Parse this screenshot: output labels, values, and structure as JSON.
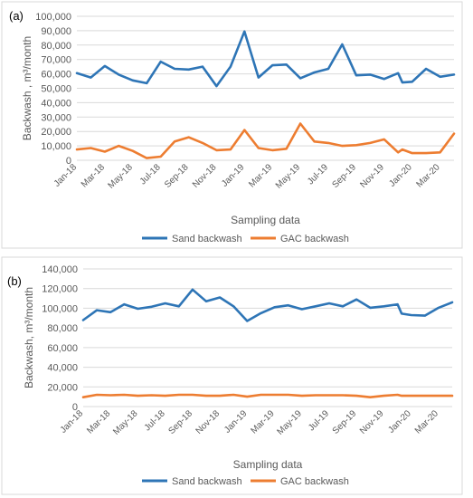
{
  "chart_data": [
    {
      "panel_label": "(a)",
      "type": "line",
      "xlabel": "Sampling data",
      "ylabel": "Backwash , m³/month",
      "ylim": [
        0,
        100000
      ],
      "y_ticks": [
        "0",
        "10,000",
        "20,000",
        "30,000",
        "40,000",
        "50,000",
        "60,000",
        "70,000",
        "80,000",
        "90,000",
        "100,000"
      ],
      "x_tick_labels": [
        "Jan-18",
        "Mar-18",
        "May-18",
        "Jul-18",
        "Sep-18",
        "Nov-18",
        "Jan-19",
        "Mar-19",
        "May-19",
        "Jul-19",
        "Sep-19",
        "Nov-19",
        "Jan-20",
        "Mar-20"
      ],
      "x_range": [
        0,
        27
      ],
      "grid": "horizontal",
      "legend": "bottom",
      "series": [
        {
          "name": "Sand backwash",
          "color": "#2e75b6",
          "x": [
            0,
            1,
            2,
            3,
            4,
            5,
            6,
            7,
            8,
            9,
            10,
            11,
            12,
            13,
            14,
            15,
            16,
            17,
            18,
            19,
            20,
            21,
            22,
            23,
            23.3,
            24,
            25,
            26,
            27
          ],
          "values": [
            60500,
            57500,
            65500,
            59500,
            55500,
            53500,
            68500,
            63500,
            63000,
            65000,
            51500,
            65000,
            89500,
            57500,
            66000,
            66500,
            57000,
            61000,
            63500,
            80500,
            59000,
            59500,
            56500,
            60500,
            54000,
            54500,
            63500,
            58000,
            59500
          ]
        },
        {
          "name": "GAC backwash",
          "color": "#ed7d31",
          "x": [
            0,
            1,
            2,
            3,
            4,
            5,
            6,
            7,
            8,
            9,
            10,
            11,
            12,
            13,
            14,
            15,
            16,
            17,
            18,
            19,
            20,
            21,
            22,
            23,
            23.3,
            24,
            25,
            26,
            27
          ],
          "values": [
            7500,
            8500,
            6000,
            10000,
            6500,
            1500,
            2500,
            13000,
            16000,
            12000,
            7000,
            7500,
            21000,
            8500,
            7000,
            8000,
            25500,
            13000,
            12000,
            10000,
            10500,
            12000,
            14500,
            5500,
            7500,
            5000,
            5000,
            5500,
            18500
          ]
        }
      ]
    },
    {
      "panel_label": "(b)",
      "type": "line",
      "xlabel": "Sampling data",
      "ylabel": "Backwash, m³/month",
      "ylim": [
        0,
        140000
      ],
      "y_ticks": [
        "0",
        "20,000",
        "40,000",
        "60,000",
        "80,000",
        "100,000",
        "120,000",
        "140,000"
      ],
      "x_tick_labels": [
        "Jan-18",
        "Mar-18",
        "May-18",
        "Jul-18",
        "Sep-18",
        "Nov-18",
        "Jan-19",
        "Mar-19",
        "May-19",
        "Jul-19",
        "Sep-19",
        "Nov-19",
        "Jan-20",
        "Mar-20"
      ],
      "x_range": [
        0,
        27
      ],
      "grid": "horizontal",
      "legend": "bottom",
      "series": [
        {
          "name": "Sand backwash",
          "color": "#2e75b6",
          "x": [
            0,
            1,
            2,
            3,
            4,
            5,
            6,
            7,
            8,
            9,
            10,
            11,
            12,
            13,
            14,
            15,
            16,
            17,
            18,
            19,
            20,
            21,
            22,
            23,
            23.3,
            24,
            25,
            26,
            27
          ],
          "values": [
            88000,
            98000,
            96000,
            104000,
            99500,
            101500,
            105000,
            102000,
            119000,
            107000,
            111000,
            102000,
            87000,
            95000,
            101000,
            103000,
            99000,
            102000,
            105000,
            102000,
            109000,
            100500,
            102000,
            104000,
            94500,
            93000,
            92500,
            100500,
            106000
          ]
        },
        {
          "name": "GAC backwash",
          "color": "#ed7d31",
          "x": [
            0,
            1,
            2,
            3,
            4,
            5,
            6,
            7,
            8,
            9,
            10,
            11,
            12,
            13,
            14,
            15,
            16,
            17,
            18,
            19,
            20,
            21,
            22,
            23,
            23.3,
            24,
            25,
            26,
            27
          ],
          "values": [
            9500,
            12000,
            11500,
            12000,
            11000,
            11500,
            11000,
            12000,
            12000,
            11000,
            11000,
            12000,
            10000,
            12000,
            12000,
            12000,
            11000,
            11500,
            11500,
            11500,
            11000,
            9500,
            11000,
            12000,
            11000,
            11000,
            11000,
            11000,
            11000
          ]
        }
      ]
    }
  ]
}
